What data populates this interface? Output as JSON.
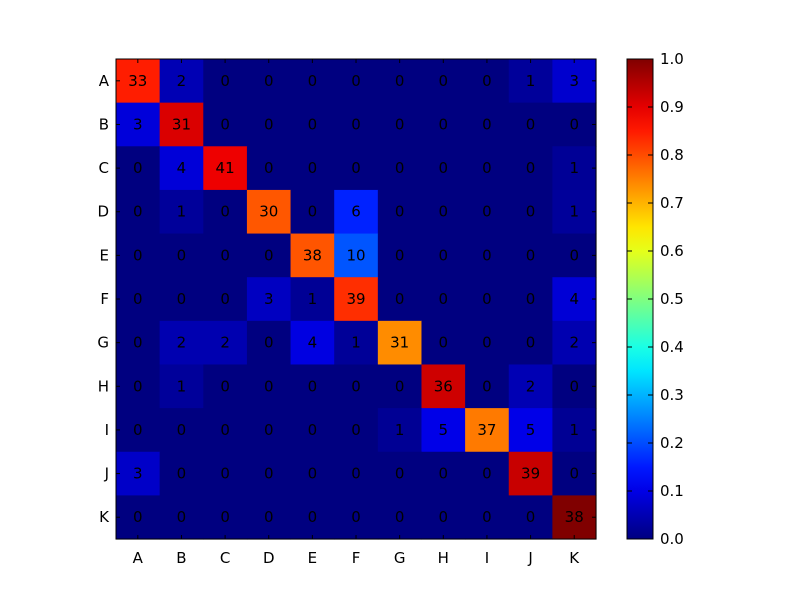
{
  "chart_data": {
    "type": "heatmap",
    "title": "",
    "xlabel": "",
    "ylabel": "",
    "x_categories": [
      "A",
      "B",
      "C",
      "D",
      "E",
      "F",
      "G",
      "H",
      "I",
      "J",
      "K"
    ],
    "y_categories": [
      "A",
      "B",
      "C",
      "D",
      "E",
      "F",
      "G",
      "H",
      "I",
      "J",
      "K"
    ],
    "values": [
      [
        33,
        2,
        0,
        0,
        0,
        0,
        0,
        0,
        0,
        1,
        3
      ],
      [
        3,
        31,
        0,
        0,
        0,
        0,
        0,
        0,
        0,
        0,
        0
      ],
      [
        0,
        4,
        41,
        0,
        0,
        0,
        0,
        0,
        0,
        0,
        1
      ],
      [
        0,
        1,
        0,
        30,
        0,
        6,
        0,
        0,
        0,
        0,
        1
      ],
      [
        0,
        0,
        0,
        0,
        38,
        10,
        0,
        0,
        0,
        0,
        0
      ],
      [
        0,
        0,
        0,
        3,
        1,
        39,
        0,
        0,
        0,
        0,
        4
      ],
      [
        0,
        2,
        2,
        0,
        4,
        1,
        31,
        0,
        0,
        0,
        2
      ],
      [
        0,
        1,
        0,
        0,
        0,
        0,
        0,
        36,
        0,
        2,
        0
      ],
      [
        0,
        0,
        0,
        0,
        0,
        0,
        1,
        5,
        37,
        5,
        1
      ],
      [
        3,
        0,
        0,
        0,
        0,
        0,
        0,
        0,
        0,
        39,
        0
      ],
      [
        0,
        0,
        0,
        0,
        0,
        0,
        0,
        0,
        0,
        0,
        38
      ]
    ],
    "colormap": "jet",
    "normalization": "row",
    "colorbar": {
      "range": [
        0.0,
        1.0
      ],
      "ticks": [
        "0.0",
        "0.1",
        "0.2",
        "0.3",
        "0.4",
        "0.5",
        "0.6",
        "0.7",
        "0.8",
        "0.9",
        "1.0"
      ]
    }
  }
}
